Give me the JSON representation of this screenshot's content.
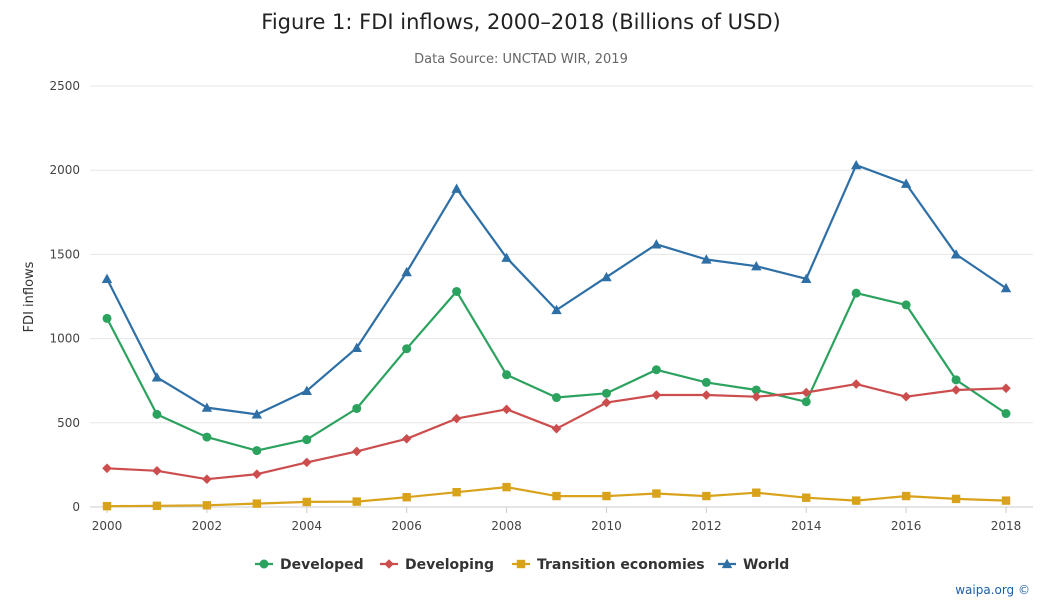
{
  "chart_data": {
    "type": "line",
    "title": "Figure 1: FDI inflows, 2000–2018 (Billions of USD)",
    "subtitle": "Data Source: UNCTAD WIR, 2019",
    "xlabel": "",
    "ylabel": "FDI inflows",
    "x": [
      2000,
      2001,
      2002,
      2003,
      2004,
      2005,
      2006,
      2007,
      2008,
      2009,
      2010,
      2011,
      2012,
      2013,
      2014,
      2015,
      2016,
      2017,
      2018
    ],
    "xticks": [
      "2000",
      "2002",
      "2004",
      "2006",
      "2008",
      "2010",
      "2012",
      "2014",
      "2016",
      "2018"
    ],
    "yticks": [
      "0",
      "500",
      "1000",
      "1500",
      "2000",
      "2500"
    ],
    "ylim": [
      0,
      2500
    ],
    "xlim": [
      2000,
      2018.3
    ],
    "grid": "horizontal",
    "legend_position": "bottom-center",
    "series": [
      {
        "name": "Developed",
        "color": "#2ca25f",
        "marker": "circle",
        "values": [
          1120,
          550,
          415,
          335,
          400,
          585,
          940,
          1280,
          785,
          650,
          675,
          815,
          740,
          695,
          625,
          1270,
          1200,
          755,
          555
        ]
      },
      {
        "name": "Developing",
        "color": "#cc4d4d",
        "marker": "diamond",
        "values": [
          230,
          215,
          165,
          195,
          265,
          330,
          405,
          525,
          580,
          465,
          620,
          665,
          665,
          655,
          680,
          730,
          655,
          695,
          705
        ]
      },
      {
        "name": "Transition economies",
        "color": "#d9a21b",
        "marker": "square",
        "values": [
          5,
          7,
          10,
          20,
          30,
          32,
          58,
          88,
          118,
          65,
          65,
          80,
          65,
          85,
          55,
          38,
          65,
          48,
          38
        ]
      },
      {
        "name": "World",
        "color": "#2e6fa6",
        "marker": "triangle",
        "values": [
          1355,
          770,
          590,
          550,
          690,
          945,
          1395,
          1890,
          1480,
          1170,
          1365,
          1560,
          1470,
          1430,
          1355,
          2030,
          1920,
          1500,
          1300
        ]
      }
    ]
  },
  "credit": "waipa.org ©"
}
